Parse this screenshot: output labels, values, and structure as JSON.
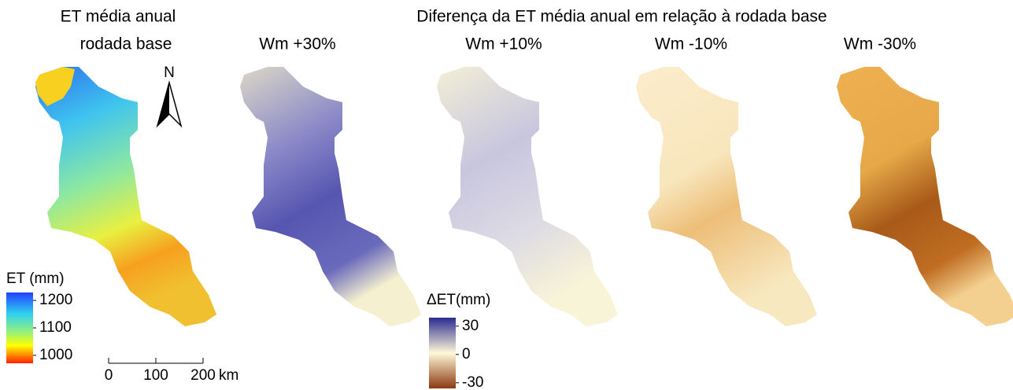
{
  "title": "ET média anual",
  "subtitle": "rodada base",
  "header": "Diferença da ET média anual em relação à rodada base",
  "panels": [
    "Wm +30%",
    "Wm +10%",
    "Wm -10%",
    "Wm -30%"
  ],
  "north": "N",
  "et_legend": {
    "title": "ET (mm)",
    "ticks": [
      1200,
      1100,
      1000
    ],
    "lim": [
      971,
      1229
    ]
  },
  "delta_legend": {
    "title": "ΔET(mm)",
    "ticks": [
      30,
      0,
      -30
    ],
    "lim": [
      -36,
      39
    ]
  },
  "scale_bar": {
    "ticks": [
      0,
      100,
      200
    ],
    "unit": "km"
  }
}
